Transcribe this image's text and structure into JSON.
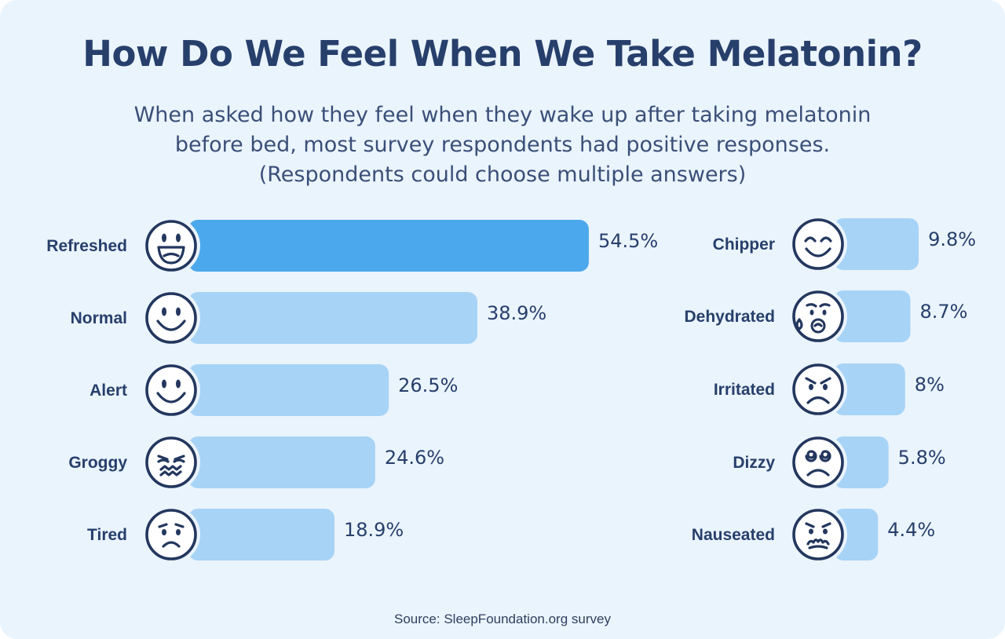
{
  "title": "How Do We Feel When We Take Melatonin?",
  "subtitle_lines": [
    "When asked how they feel when they wake up after taking melatonin",
    "before bed, most survey respondents had positive responses.",
    "(Respondents could choose multiple answers)"
  ],
  "source": "Source: SleepFoundation.org survey",
  "colors": {
    "background": "#eaf4fd",
    "highlight_bar": "#4ca8ec",
    "bar": "#a7d3f6",
    "text": "#273f6b",
    "icon_stroke": "#23375e"
  },
  "chart_data": {
    "type": "bar",
    "orientation": "horizontal",
    "unit": "%",
    "groups": [
      {
        "categories": [
          "Refreshed",
          "Normal",
          "Alert",
          "Groggy",
          "Tired"
        ],
        "values": [
          54.5,
          38.9,
          26.5,
          24.6,
          18.9
        ],
        "value_labels": [
          "54.5%",
          "38.9%",
          "26.5%",
          "24.6%",
          "18.9%"
        ],
        "icons": [
          "grinning-face-icon",
          "smiling-face-icon",
          "smiling-face-icon",
          "groggy-face-icon",
          "tired-face-icon"
        ]
      },
      {
        "categories": [
          "Chipper",
          "Dehydrated",
          "Irritated",
          "Dizzy",
          "Nauseated"
        ],
        "values": [
          9.8,
          8.7,
          8.0,
          5.8,
          4.4
        ],
        "value_labels": [
          "9.8%",
          "8.7%",
          "8%",
          "5.8%",
          "4.4%"
        ],
        "icons": [
          "content-face-icon",
          "sweating-face-icon",
          "angry-face-icon",
          "dizzy-face-icon",
          "nauseated-face-icon"
        ]
      }
    ],
    "highlight": "Refreshed"
  }
}
